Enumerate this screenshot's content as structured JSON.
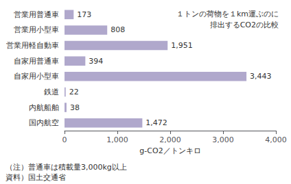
{
  "chart_data": {
    "type": "bar",
    "orientation": "horizontal",
    "categories": [
      "営業用普通車",
      "営業用小型車",
      "営業用軽自動車",
      "自家用普通車",
      "自家用小型車",
      "鉄道",
      "内航船舶",
      "国内航空"
    ],
    "values": [
      173,
      808,
      1951,
      394,
      3443,
      22,
      38,
      1472
    ],
    "value_labels": [
      "173",
      "808",
      "1,951",
      "394",
      "3,443",
      "22",
      "38",
      "1,472"
    ],
    "data_labels": true,
    "color": "#b0a8cc",
    "xlabel": "g-CO2／トンキロ",
    "xlim": [
      0,
      4000
    ],
    "xticks": [
      0,
      {
        "value": 1000,
        "label": "1,000"
      },
      {
        "value": 2000,
        "label": "2,000"
      },
      {
        "value": 3000,
        "label": "3,000"
      },
      {
        "value": 4000,
        "label": "4,000"
      }
    ],
    "grid": false,
    "annotations": [
      "１トンの荷物を１km運ぶのに\n排出するCO2の比較",
      "（注）普通車は積載量3,000kg以上",
      "資料）国土交通省"
    ]
  }
}
